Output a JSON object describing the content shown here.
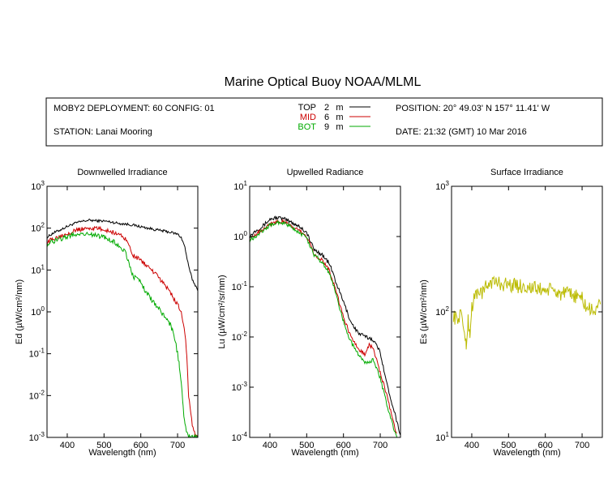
{
  "title": "Marine Optical Buoy NOAA/MLML",
  "info": {
    "deployment": "MOBY2 DEPLOYMENT: 60 CONFIG: 01",
    "station": "STATION: Lanai Mooring",
    "position": "POSITION: 20° 49.03' N   157° 11.41' W",
    "date": "DATE: 21:32 (GMT) 10 Mar 2016",
    "depth_legend": [
      {
        "name": "TOP",
        "depth": "2",
        "unit": "m",
        "color": "#000000"
      },
      {
        "name": "MID",
        "depth": "6",
        "unit": "m",
        "color": "#cc0000"
      },
      {
        "name": "BOT",
        "depth": "9",
        "unit": "m",
        "color": "#00aa00"
      }
    ]
  },
  "chart_data": [
    {
      "type": "line",
      "title": "Downwelled Irradiance",
      "xlabel": "Wavelength (nm)",
      "ylabel": "Ed  (µW/cm²/nm)",
      "y_scale": "log",
      "xlim": [
        345,
        755
      ],
      "ylim": [
        0.001,
        1000
      ],
      "xticks": [
        400,
        500,
        600,
        700
      ],
      "yticks": [
        {
          "v": 0.001,
          "base": "10",
          "exp": "-3"
        },
        {
          "v": 0.01,
          "base": "10",
          "exp": "-2"
        },
        {
          "v": 0.1,
          "base": "10",
          "exp": "-1"
        },
        {
          "v": 1,
          "base": "10",
          "exp": "0"
        },
        {
          "v": 10,
          "base": "10",
          "exp": "1"
        },
        {
          "v": 100,
          "base": "10",
          "exp": "2"
        },
        {
          "v": 1000,
          "base": "10",
          "exp": "3"
        }
      ],
      "series": [
        {
          "name": "TOP",
          "color": "#000000",
          "noise": 0.03,
          "x": [
            345,
            360,
            380,
            400,
            420,
            440,
            460,
            480,
            500,
            520,
            540,
            560,
            580,
            600,
            620,
            640,
            660,
            680,
            700,
            710,
            720,
            730,
            740,
            750,
            755
          ],
          "y": [
            60,
            75,
            90,
            110,
            130,
            145,
            155,
            150,
            148,
            140,
            130,
            125,
            118,
            108,
            100,
            92,
            86,
            80,
            72,
            60,
            35,
            12,
            6,
            4,
            3.5
          ]
        },
        {
          "name": "MID",
          "color": "#cc0000",
          "noise": 0.05,
          "x": [
            345,
            360,
            380,
            400,
            420,
            440,
            460,
            480,
            500,
            520,
            540,
            560,
            580,
            600,
            620,
            640,
            660,
            680,
            690,
            700,
            710,
            720,
            725,
            730,
            740,
            750,
            755
          ],
          "y": [
            45,
            55,
            65,
            75,
            88,
            95,
            100,
            98,
            92,
            82,
            72,
            55,
            22,
            17,
            12,
            8,
            5,
            3,
            2,
            1.5,
            1,
            0.3,
            0.1,
            0.01,
            0.002,
            0.001,
            0.001
          ]
        },
        {
          "name": "BOT",
          "color": "#00aa00",
          "noise": 0.06,
          "x": [
            345,
            360,
            380,
            400,
            420,
            440,
            460,
            480,
            500,
            520,
            540,
            560,
            570,
            580,
            600,
            620,
            640,
            660,
            680,
            690,
            700,
            705,
            710,
            715,
            720,
            730,
            740,
            750,
            755
          ],
          "y": [
            40,
            48,
            55,
            62,
            70,
            75,
            72,
            66,
            60,
            50,
            40,
            25,
            12,
            7,
            5,
            2.5,
            1.5,
            0.9,
            0.5,
            0.3,
            0.1,
            0.05,
            0.02,
            0.005,
            0.002,
            0.001,
            0.001,
            0.001,
            0.001
          ]
        }
      ]
    },
    {
      "type": "line",
      "title": "Upwelled Radiance",
      "xlabel": "Wavelength (nm)",
      "ylabel": "Lu  (µW/cm²/sr/nm)",
      "y_scale": "log",
      "xlim": [
        345,
        755
      ],
      "ylim": [
        0.0001,
        10
      ],
      "xticks": [
        400,
        500,
        600,
        700
      ],
      "yticks": [
        {
          "v": 0.0001,
          "base": "10",
          "exp": "-4"
        },
        {
          "v": 0.001,
          "base": "10",
          "exp": "-3"
        },
        {
          "v": 0.01,
          "base": "10",
          "exp": "-2"
        },
        {
          "v": 0.1,
          "base": "10",
          "exp": "-1"
        },
        {
          "v": 1,
          "base": "10",
          "exp": "0"
        },
        {
          "v": 10,
          "base": "10",
          "exp": "1"
        }
      ],
      "series": [
        {
          "name": "TOP",
          "color": "#000000",
          "noise": 0.04,
          "x": [
            345,
            360,
            380,
            400,
            420,
            440,
            460,
            480,
            500,
            510,
            520,
            540,
            560,
            570,
            580,
            600,
            620,
            640,
            660,
            680,
            700,
            720,
            740,
            750,
            755
          ],
          "y": [
            1,
            1.3,
            1.6,
            2.2,
            2.4,
            2.2,
            1.9,
            1.6,
            1.2,
            0.8,
            0.55,
            0.45,
            0.3,
            0.2,
            0.12,
            0.05,
            0.02,
            0.012,
            0.01,
            0.009,
            0.005,
            0.001,
            0.0003,
            0.00015,
            0.00012
          ]
        },
        {
          "name": "MID",
          "color": "#cc0000",
          "noise": 0.04,
          "x": [
            345,
            360,
            380,
            400,
            420,
            440,
            460,
            480,
            500,
            510,
            520,
            540,
            560,
            570,
            580,
            600,
            620,
            640,
            660,
            670,
            680,
            700,
            720,
            740,
            745
          ],
          "y": [
            0.9,
            1.1,
            1.4,
            1.8,
            2,
            1.9,
            1.6,
            1.3,
            1,
            0.7,
            0.45,
            0.35,
            0.22,
            0.14,
            0.08,
            0.025,
            0.01,
            0.006,
            0.0045,
            0.007,
            0.006,
            0.002,
            0.0006,
            0.00015,
            0.00012
          ]
        },
        {
          "name": "BOT",
          "color": "#00aa00",
          "noise": 0.04,
          "x": [
            345,
            360,
            380,
            400,
            420,
            440,
            460,
            480,
            500,
            510,
            520,
            540,
            560,
            570,
            580,
            600,
            620,
            640,
            660,
            680,
            700,
            720,
            740,
            745
          ],
          "y": [
            0.85,
            1,
            1.3,
            1.7,
            1.9,
            1.8,
            1.5,
            1.2,
            0.9,
            0.65,
            0.42,
            0.32,
            0.2,
            0.12,
            0.07,
            0.02,
            0.008,
            0.0045,
            0.003,
            0.0035,
            0.0015,
            0.0004,
            0.00012,
            0.0001
          ]
        }
      ]
    },
    {
      "type": "line",
      "title": "Surface Irradiance",
      "xlabel": "Wavelength (nm)",
      "ylabel": "Es  (µW/cm²/nm)",
      "y_scale": "log",
      "xlim": [
        345,
        755
      ],
      "ylim": [
        10,
        1000
      ],
      "xticks": [
        400,
        500,
        600,
        700
      ],
      "yticks": [
        {
          "v": 10,
          "base": "10",
          "exp": "1"
        },
        {
          "v": 100,
          "base": "10",
          "exp": "2"
        },
        {
          "v": 1000,
          "base": "10",
          "exp": "3"
        }
      ],
      "series": [
        {
          "name": "",
          "color": "#bbbb00",
          "noise": 0.06,
          "x": [
            350,
            360,
            370,
            380,
            385,
            390,
            395,
            400,
            410,
            420,
            430,
            440,
            450,
            460,
            480,
            500,
            520,
            540,
            560,
            580,
            600,
            620,
            640,
            660,
            680,
            700,
            710,
            720,
            730,
            740,
            750
          ],
          "y": [
            95,
            85,
            100,
            70,
            50,
            90,
            65,
            110,
            135,
            150,
            140,
            160,
            175,
            172,
            168,
            165,
            162,
            160,
            155,
            152,
            150,
            148,
            140,
            138,
            135,
            128,
            110,
            105,
            100,
            110,
            115
          ]
        }
      ]
    }
  ]
}
